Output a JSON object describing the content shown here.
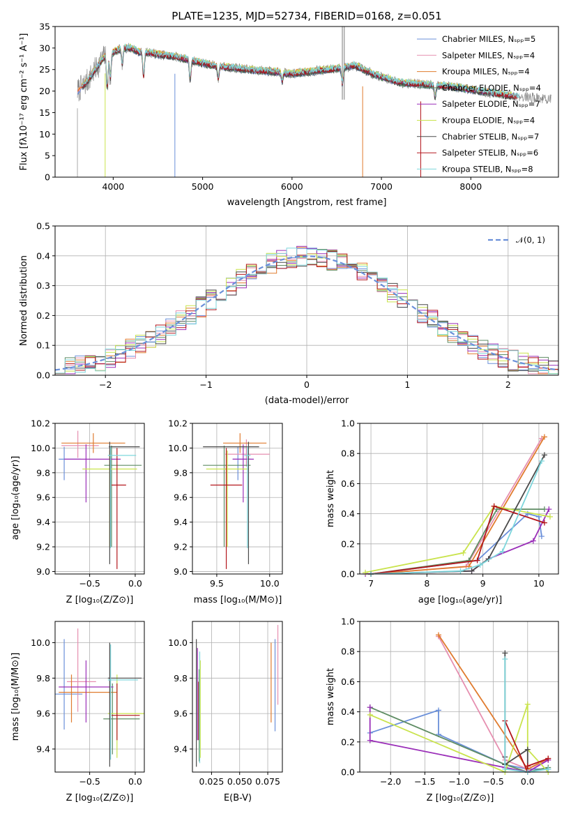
{
  "chart_data": [
    {
      "id": "spectrum",
      "type": "line",
      "title": "PLATE=1235, MJD=52734, FIBERID=0168, z=0.051",
      "xlabel": "wavelength [Angstrom, rest frame]",
      "ylabel": "Flux [fλ10⁻¹⁷ erg cm⁻² s⁻¹ A⁻¹]",
      "xlim": [
        3350,
        8980
      ],
      "ylim": [
        0,
        35
      ],
      "xticks": [
        4000,
        5000,
        6000,
        7000,
        8000
      ],
      "yticks": [
        0,
        5,
        10,
        15,
        20,
        25,
        30,
        35
      ],
      "grid": false,
      "legend_position": "upper-right",
      "legend": [
        {
          "label": "Chabrier MILES, Nₛₚₚ=5",
          "color": "#6a8fd9"
        },
        {
          "label": "Salpeter MILES, Nₛₚₚ=4",
          "color": "#e68fb0"
        },
        {
          "label": "Kroupa MILES, Nₛₚₚ=4",
          "color": "#e07b2e"
        },
        {
          "label": "Chabrier ELODIE, Nₛₚₚ=4",
          "color": "#5e8c63"
        },
        {
          "label": "Salpeter ELODIE, Nₛₚₚ=7",
          "color": "#9a2eb8"
        },
        {
          "label": "Kroupa ELODIE, Nₛₚₚ=4",
          "color": "#c9e34c"
        },
        {
          "label": "Chabrier STELIB, Nₛₚₚ=7",
          "color": "#4a4a4a"
        },
        {
          "label": "Salpeter STELIB, Nₛₚₚ=6",
          "color": "#b3161c"
        },
        {
          "label": "Kroupa STELIB, Nₛₚₚ=8",
          "color": "#7ed6dc"
        }
      ],
      "data_color": "#888888",
      "continuum": [
        [
          3600,
          20
        ],
        [
          3700,
          22
        ],
        [
          3800,
          25
        ],
        [
          3900,
          28
        ],
        [
          4000,
          29
        ],
        [
          4100,
          30
        ],
        [
          4200,
          30
        ],
        [
          4300,
          29
        ],
        [
          4400,
          29
        ],
        [
          4500,
          28.5
        ],
        [
          4700,
          28
        ],
        [
          4900,
          27
        ],
        [
          5100,
          26
        ],
        [
          5300,
          25.5
        ],
        [
          5500,
          25
        ],
        [
          5800,
          24.5
        ],
        [
          6000,
          24
        ],
        [
          6200,
          24.5
        ],
        [
          6400,
          25
        ],
        [
          6600,
          25.5
        ],
        [
          6700,
          26
        ],
        [
          6900,
          24
        ],
        [
          7200,
          22
        ],
        [
          7500,
          21.5
        ],
        [
          7800,
          21
        ],
        [
          8100,
          20
        ],
        [
          8400,
          19
        ],
        [
          8700,
          18.5
        ],
        [
          8900,
          18
        ]
      ],
      "dips": [
        [
          3934,
          8
        ],
        [
          3968,
          6
        ],
        [
          4101,
          4
        ],
        [
          4340,
          6
        ],
        [
          4861,
          5
        ],
        [
          5175,
          3
        ],
        [
          5890,
          2
        ],
        [
          6563,
          4
        ],
        [
          7600,
          3
        ]
      ],
      "spike_wavelengths": [
        3600,
        3910,
        4690,
        6790,
        7440
      ],
      "emission_spikes": [
        6563,
        6584
      ]
    },
    {
      "id": "residuals",
      "type": "histogram",
      "xlabel": "(data-model)/error",
      "ylabel": "Normed distribution",
      "xlim": [
        -2.5,
        2.5
      ],
      "ylim": [
        0,
        0.5
      ],
      "xticks": [
        -2,
        -1,
        0,
        1,
        2
      ],
      "yticks": [
        0.0,
        0.1,
        0.2,
        0.3,
        0.4,
        0.5
      ],
      "grid": true,
      "legend_position": "upper-right",
      "legend": [
        {
          "label": "𝒩(0, 1)",
          "color": "#6a8fd9",
          "style": "dashed"
        }
      ],
      "bin_width": 0.1,
      "bin_start": -2.5,
      "normal_curve": {
        "mean": 0,
        "sigma": 1
      }
    },
    {
      "id": "age-vs-Z",
      "type": "errorbar",
      "xlabel": "Z [log₁₀(Z/Z⊙)]",
      "ylabel": "age  [log₁₀(age/yr)]",
      "xlim": [
        -0.88,
        0.1
      ],
      "ylim": [
        8.98,
        10.2
      ],
      "xticks": [
        -0.5,
        0.0
      ],
      "yticks": [
        9.0,
        9.2,
        9.4,
        9.6,
        9.8,
        10.0,
        10.2
      ],
      "grid": true,
      "points": [
        {
          "color": "#6a8fd9",
          "x": -0.78,
          "y": 9.91,
          "xerr": [
            0.06,
            0.18
          ],
          "yerr": [
            0.17,
            0.1
          ]
        },
        {
          "color": "#e68fb0",
          "x": -0.63,
          "y": 10.02,
          "xerr": [
            0.18,
            0.23
          ],
          "yerr": [
            0.1,
            0.12
          ]
        },
        {
          "color": "#e07b2e",
          "x": -0.46,
          "y": 10.04,
          "xerr": [
            0.35,
            0.35
          ],
          "yerr": [
            0.08,
            0.08
          ]
        },
        {
          "color": "#5e8c63",
          "x": -0.26,
          "y": 9.86,
          "xerr": [
            0.08,
            0.33
          ],
          "yerr": [
            0.66,
            0.16
          ]
        },
        {
          "color": "#9a2eb8",
          "x": -0.54,
          "y": 9.91,
          "xerr": [
            0.24,
            0.38
          ],
          "yerr": [
            0.35,
            0.12
          ]
        },
        {
          "color": "#c9e34c",
          "x": -0.28,
          "y": 9.83,
          "xerr": [
            0.3,
            0.3
          ],
          "yerr": [
            0.63,
            0.15
          ]
        },
        {
          "color": "#4a4a4a",
          "x": -0.28,
          "y": 10.01,
          "xerr": [
            0.01,
            0.33
          ],
          "yerr": [
            0.95,
            0.04
          ]
        },
        {
          "color": "#b3161c",
          "x": -0.2,
          "y": 9.7,
          "xerr": [
            0.06,
            0.1
          ],
          "yerr": [
            0.68,
            0.3
          ]
        },
        {
          "color": "#7ed6dc",
          "x": -0.27,
          "y": 9.94,
          "xerr": [
            0.03,
            0.28
          ],
          "yerr": [
            0.75,
            0.07
          ]
        }
      ]
    },
    {
      "id": "age-vs-mass",
      "type": "errorbar",
      "xlabel": "mass [log₁₀(M/M⊙)]",
      "ylabel": "",
      "xlim": [
        9.27,
        10.12
      ],
      "ylim": [
        8.98,
        10.2
      ],
      "xticks": [
        9.5,
        10.0
      ],
      "yticks": [
        9.0,
        9.2,
        9.4,
        9.6,
        9.8,
        10.0,
        10.2
      ],
      "grid": true,
      "points": [
        {
          "color": "#6a8fd9",
          "x": 9.7,
          "y": 9.91,
          "xerr": [
            0.05,
            0.12
          ],
          "yerr": [
            0.17,
            0.1
          ]
        },
        {
          "color": "#e68fb0",
          "x": 9.78,
          "y": 9.95,
          "xerr": [
            0.2,
            0.22
          ],
          "yerr": [
            0.1,
            0.12
          ]
        },
        {
          "color": "#e07b2e",
          "x": 9.72,
          "y": 10.04,
          "xerr": [
            0.16,
            0.25
          ],
          "yerr": [
            0.08,
            0.08
          ]
        },
        {
          "color": "#5e8c63",
          "x": 9.57,
          "y": 9.86,
          "xerr": [
            0.2,
            0.25
          ],
          "yerr": [
            0.66,
            0.16
          ]
        },
        {
          "color": "#9a2eb8",
          "x": 9.75,
          "y": 9.91,
          "xerr": [
            0.1,
            0.1
          ],
          "yerr": [
            0.35,
            0.12
          ]
        },
        {
          "color": "#c9e34c",
          "x": 9.6,
          "y": 9.83,
          "xerr": [
            0.2,
            0.2
          ],
          "yerr": [
            0.63,
            0.15
          ]
        },
        {
          "color": "#4a4a4a",
          "x": 9.8,
          "y": 10.01,
          "xerr": [
            0.43,
            0.1
          ],
          "yerr": [
            0.95,
            0.04
          ]
        },
        {
          "color": "#b3161c",
          "x": 9.59,
          "y": 9.7,
          "xerr": [
            0.15,
            0.15
          ],
          "yerr": [
            0.68,
            0.3
          ]
        },
        {
          "color": "#7ed6dc",
          "x": 9.79,
          "y": 9.94,
          "xerr": [
            0.03,
            0.03
          ],
          "yerr": [
            0.75,
            0.07
          ]
        }
      ]
    },
    {
      "id": "weight-vs-age",
      "type": "line",
      "xlabel": "age  [log₁₀(age/yr)]",
      "ylabel": "mass weight",
      "xlim": [
        6.8,
        10.35
      ],
      "ylim": [
        0,
        1
      ],
      "xticks": [
        7,
        8,
        9,
        10
      ],
      "yticks": [
        0.0,
        0.2,
        0.4,
        0.6,
        0.8,
        1.0
      ],
      "grid": true,
      "series": [
        {
          "color": "#6a8fd9",
          "x": [
            7.0,
            8.9,
            9.8,
            10.0,
            10.05
          ],
          "y": [
            0.0,
            0.09,
            0.4,
            0.38,
            0.25
          ]
        },
        {
          "color": "#e68fb0",
          "x": [
            7.0,
            8.7,
            10.05
          ],
          "y": [
            0.0,
            0.05,
            0.9
          ]
        },
        {
          "color": "#e07b2e",
          "x": [
            7.0,
            8.75,
            10.1
          ],
          "y": [
            0.0,
            0.05,
            0.91
          ]
        },
        {
          "color": "#5e8c63",
          "x": [
            7.0,
            8.75,
            9.25,
            10.1
          ],
          "y": [
            0.0,
            0.09,
            0.43,
            0.43
          ]
        },
        {
          "color": "#9a2eb8",
          "x": [
            6.9,
            8.8,
            9.1,
            9.9,
            10.18
          ],
          "y": [
            0.0,
            0.02,
            0.1,
            0.22,
            0.43
          ]
        },
        {
          "color": "#c9e34c",
          "x": [
            6.9,
            8.65,
            9.2,
            10.2
          ],
          "y": [
            0.01,
            0.14,
            0.45,
            0.38
          ]
        },
        {
          "color": "#4a4a4a",
          "x": [
            7.0,
            8.8,
            9.1,
            10.1
          ],
          "y": [
            0.0,
            0.02,
            0.1,
            0.79
          ]
        },
        {
          "color": "#b3161c",
          "x": [
            7.0,
            8.9,
            9.2,
            10.1
          ],
          "y": [
            0.0,
            0.09,
            0.45,
            0.34
          ]
        },
        {
          "color": "#7ed6dc",
          "x": [
            7.0,
            8.6,
            8.95,
            9.35,
            10.05
          ],
          "y": [
            0.0,
            0.02,
            0.06,
            0.15,
            0.75
          ]
        }
      ]
    },
    {
      "id": "mass-vs-Z",
      "type": "errorbar",
      "xlabel": "Z [log₁₀(Z/Z⊙)]",
      "ylabel": "mass [log₁₀(M/M⊙)]",
      "xlim": [
        -0.88,
        0.1
      ],
      "ylim": [
        9.27,
        10.12
      ],
      "xticks": [
        -0.5,
        0.0
      ],
      "yticks": [
        9.4,
        9.6,
        9.8,
        10.0
      ],
      "grid": true,
      "points": [
        {
          "color": "#6a8fd9",
          "x": -0.78,
          "y": 9.71,
          "xerr": [
            0.1,
            0.2
          ],
          "yerr": [
            0.2,
            0.31
          ]
        },
        {
          "color": "#e68fb0",
          "x": -0.63,
          "y": 9.78,
          "xerr": [
            0.12,
            0.2
          ],
          "yerr": [
            0.17,
            0.3
          ]
        },
        {
          "color": "#e07b2e",
          "x": -0.7,
          "y": 9.72,
          "xerr": [
            0.14,
            0.5
          ],
          "yerr": [
            0.17,
            0.1
          ]
        },
        {
          "color": "#5e8c63",
          "x": -0.25,
          "y": 9.57,
          "xerr": [
            0.1,
            0.3
          ],
          "yerr": [
            0.2,
            0.2
          ]
        },
        {
          "color": "#9a2eb8",
          "x": -0.54,
          "y": 9.75,
          "xerr": [
            0.3,
            0.3
          ],
          "yerr": [
            0.2,
            0.15
          ]
        },
        {
          "color": "#c9e34c",
          "x": -0.2,
          "y": 9.6,
          "xerr": [
            0.1,
            0.3
          ],
          "yerr": [
            0.25,
            0.22
          ]
        },
        {
          "color": "#4a4a4a",
          "x": -0.28,
          "y": 9.8,
          "xerr": [
            0.02,
            0.35
          ],
          "yerr": [
            0.5,
            0.2
          ]
        },
        {
          "color": "#b3161c",
          "x": -0.2,
          "y": 9.59,
          "xerr": [
            0.06,
            0.25
          ],
          "yerr": [
            0.14,
            0.18
          ]
        },
        {
          "color": "#7ed6dc",
          "x": -0.27,
          "y": 9.79,
          "xerr": [
            0.03,
            0.3
          ],
          "yerr": [
            0.45,
            0.2
          ]
        }
      ]
    },
    {
      "id": "mass-vs-ebv",
      "type": "errorbar",
      "xlabel": "E(B-V)",
      "ylabel": "",
      "xlim": [
        0.008,
        0.088
      ],
      "ylim": [
        9.27,
        10.12
      ],
      "xticks": [
        0.025,
        0.05,
        0.075
      ],
      "xtick_labels": [
        "0.025",
        "0.050",
        "0.075"
      ],
      "yticks": [
        9.4,
        9.6,
        9.8,
        10.0
      ],
      "grid": true,
      "points": [
        {
          "color": "#4a4a4a",
          "x": 0.0115,
          "y": 9.6,
          "xerr": [
            0,
            0
          ],
          "yerr": [
            0.3,
            0.42
          ]
        },
        {
          "color": "#9a2eb8",
          "x": 0.0125,
          "y": 9.7,
          "xerr": [
            0,
            0
          ],
          "yerr": [
            0.25,
            0.27
          ]
        },
        {
          "color": "#b3161c",
          "x": 0.0135,
          "y": 9.6,
          "xerr": [
            0,
            0
          ],
          "yerr": [
            0.15,
            0.18
          ]
        },
        {
          "color": "#5e8c63",
          "x": 0.014,
          "y": 9.55,
          "xerr": [
            0,
            0
          ],
          "yerr": [
            0.22,
            0.3
          ]
        },
        {
          "color": "#7ed6dc",
          "x": 0.0145,
          "y": 9.65,
          "xerr": [
            0,
            0
          ],
          "yerr": [
            0.33,
            0.3
          ]
        },
        {
          "color": "#c9e34c",
          "x": 0.015,
          "y": 9.55,
          "xerr": [
            0,
            0
          ],
          "yerr": [
            0.2,
            0.35
          ]
        },
        {
          "color": "#e07b2e",
          "x": 0.078,
          "y": 9.75,
          "xerr": [
            0,
            0
          ],
          "yerr": [
            0.2,
            0.25
          ]
        },
        {
          "color": "#6a8fd9",
          "x": 0.0815,
          "y": 9.75,
          "xerr": [
            0,
            0
          ],
          "yerr": [
            0.25,
            0.27
          ]
        },
        {
          "color": "#e68fb0",
          "x": 0.084,
          "y": 9.85,
          "xerr": [
            0,
            0
          ],
          "yerr": [
            0.2,
            0.25
          ]
        }
      ]
    },
    {
      "id": "weight-vs-Z",
      "type": "line",
      "xlabel": "Z [log₁₀(Z/Z⊙)]",
      "ylabel": "mass weight",
      "xlim": [
        -2.45,
        0.45
      ],
      "ylim": [
        0,
        1
      ],
      "xticks": [
        -2.0,
        -1.5,
        -1.0,
        -0.5,
        0.0
      ],
      "yticks": [
        0.0,
        0.2,
        0.4,
        0.6,
        0.8,
        1.0
      ],
      "grid": true,
      "series": [
        {
          "color": "#6a8fd9",
          "x": [
            -2.3,
            -1.3,
            -1.3,
            -0.33,
            0.0,
            0.3
          ],
          "y": [
            0.26,
            0.41,
            0.25,
            0.05,
            0.02,
            0.02
          ]
        },
        {
          "color": "#e68fb0",
          "x": [
            -1.3,
            -0.33,
            0.0,
            0.3
          ],
          "y": [
            0.9,
            0.08,
            0.02,
            0.08
          ]
        },
        {
          "color": "#e07b2e",
          "x": [
            -1.3,
            0.0,
            0.3
          ],
          "y": [
            0.91,
            0.02,
            0.09
          ]
        },
        {
          "color": "#5e8c63",
          "x": [
            -2.3,
            -0.33,
            0.0,
            0.3
          ],
          "y": [
            0.43,
            0.05,
            0.0,
            0.03
          ]
        },
        {
          "color": "#9a2eb8",
          "x": [
            -2.3,
            -2.3,
            -0.33,
            0.0,
            0.3
          ],
          "y": [
            0.43,
            0.21,
            0.03,
            0.0,
            0.08
          ]
        },
        {
          "color": "#c9e34c",
          "x": [
            -2.3,
            -0.33,
            0.0,
            0.0,
            0.3
          ],
          "y": [
            0.38,
            0.0,
            0.45,
            0.15,
            0.0
          ]
        },
        {
          "color": "#4a4a4a",
          "x": [
            -0.33,
            -0.33,
            -0.33,
            0.0,
            0.0
          ],
          "y": [
            0.79,
            0.1,
            0.05,
            0.15,
            0.0
          ]
        },
        {
          "color": "#b3161c",
          "x": [
            -0.33,
            0.0,
            0.0,
            0.3
          ],
          "y": [
            0.34,
            0.0,
            0.04,
            0.09
          ]
        },
        {
          "color": "#7ed6dc",
          "x": [
            -0.33,
            -0.33,
            0.0,
            0.3
          ],
          "y": [
            0.75,
            0.02,
            0.0,
            0.02
          ]
        }
      ]
    }
  ]
}
